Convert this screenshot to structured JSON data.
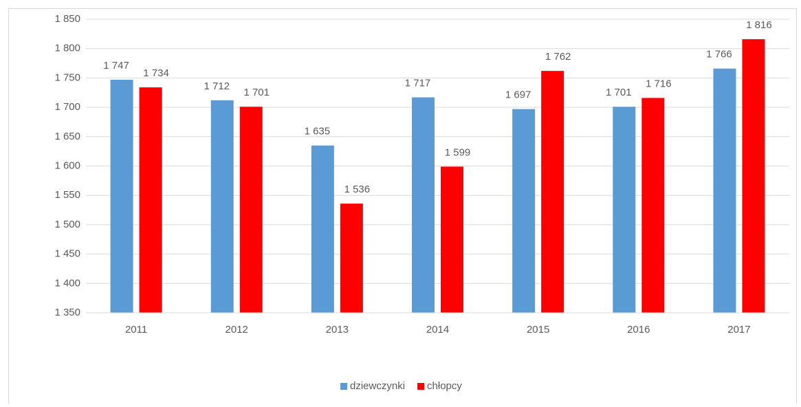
{
  "chart_data": {
    "type": "bar",
    "categories": [
      "2011",
      "2012",
      "2013",
      "2014",
      "2015",
      "2016",
      "2017"
    ],
    "series": [
      {
        "name": "dziewczynki",
        "color": "#5b9bd5",
        "values": [
          1747,
          1712,
          1635,
          1717,
          1697,
          1701,
          1766
        ],
        "value_labels": [
          "1 747",
          "1 712",
          "1 635",
          "1 717",
          "1 697",
          "1 701",
          "1 766"
        ]
      },
      {
        "name": "chłopcy",
        "color": "#ff0000",
        "values": [
          1734,
          1701,
          1536,
          1599,
          1762,
          1716,
          1816
        ],
        "value_labels": [
          "1 734",
          "1 701",
          "1 536",
          "1 599",
          "1 762",
          "1 716",
          "1 816"
        ]
      }
    ],
    "ylim": [
      1350,
      1850
    ],
    "yticks": [
      {
        "value": 1350,
        "label": "1 350"
      },
      {
        "value": 1400,
        "label": "1 400"
      },
      {
        "value": 1450,
        "label": "1 450"
      },
      {
        "value": 1500,
        "label": "1 500"
      },
      {
        "value": 1550,
        "label": "1 550"
      },
      {
        "value": 1600,
        "label": "1 600"
      },
      {
        "value": 1650,
        "label": "1 650"
      },
      {
        "value": 1700,
        "label": "1 700"
      },
      {
        "value": 1750,
        "label": "1 750"
      },
      {
        "value": 1800,
        "label": "1 800"
      },
      {
        "value": 1850,
        "label": "1 850"
      }
    ],
    "grid": true,
    "legend": "bottom"
  }
}
